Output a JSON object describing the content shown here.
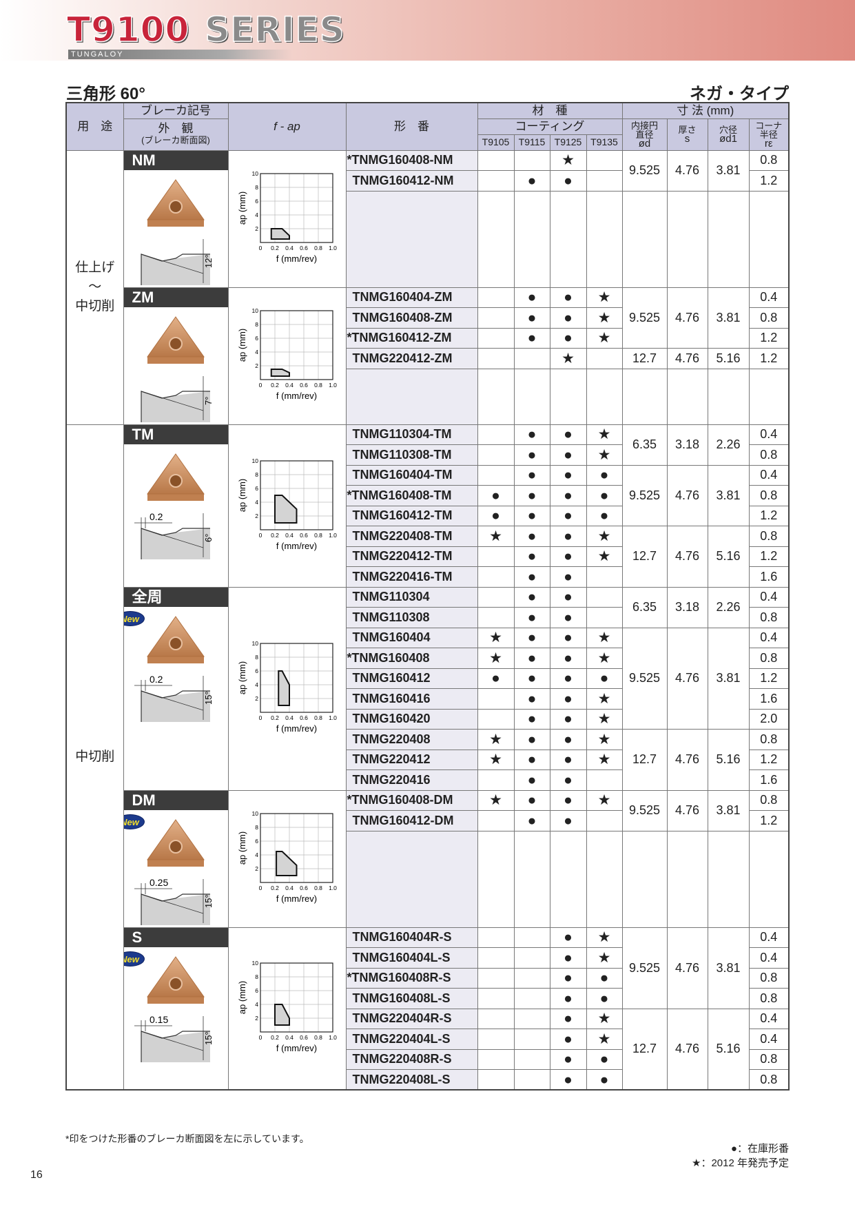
{
  "header": {
    "logo_series": "T9100",
    "logo_word": "SERIES",
    "brand": "TUNGALOY"
  },
  "title": "三角形 60°",
  "subtitle": "ネガ・タイプ",
  "table_header": {
    "usage": "用　途",
    "break_code": "ブレーカ記号",
    "appearance": "外　観",
    "appearance_sub": "(ブレーカ断面図)",
    "fap": "f - ap",
    "part_no": "形　番",
    "grade": "材　種",
    "coating": "コーティング",
    "grades": [
      "T9105",
      "T9115",
      "T9125",
      "T9135"
    ],
    "dims": "寸 法 (mm)",
    "dim_cols": [
      {
        "l1": "内接円",
        "l2": "直径",
        "l3": "ød"
      },
      {
        "l1": "厚さ",
        "l2": "",
        "l3": "s"
      },
      {
        "l1": "穴径",
        "l2": "",
        "l3": "ød1"
      },
      {
        "l1": "コーナ",
        "l2": "半径",
        "l3": "rε"
      }
    ]
  },
  "chart_axes": {
    "xlabel": "f (mm/rev)",
    "ylabel": "ap (mm)",
    "x_ticks": [
      "0",
      "0.2",
      "0.4",
      "0.6",
      "0.8",
      "1.0"
    ],
    "y_ticks": [
      "2",
      "4",
      "6",
      "8",
      "10"
    ],
    "xlim": [
      0,
      1.0
    ],
    "ylim": [
      0,
      10
    ]
  },
  "usage_groups": [
    {
      "label": "仕上げ\n〜\n中切削",
      "sections": 2
    },
    {
      "label": "中切削",
      "sections": 4
    }
  ],
  "sections": [
    {
      "code": "NM",
      "is_new": false,
      "land": "",
      "angle": "12°",
      "blank_rows": 4,
      "chart_region": [
        [
          0.15,
          0.5
        ],
        [
          0.15,
          2
        ],
        [
          0.3,
          2
        ],
        [
          0.4,
          1
        ],
        [
          0.4,
          0.5
        ]
      ],
      "rows": [
        {
          "part": "*TNMG160408-NM",
          "marks": [
            "",
            "",
            "★",
            ""
          ],
          "re": "0.8"
        },
        {
          "part": "TNMG160412-NM",
          "marks": [
            "",
            "●",
            "●",
            ""
          ],
          "re": "1.2"
        }
      ],
      "dim_groups": [
        {
          "rows": 2,
          "od": "9.525",
          "s": "4.76",
          "od1": "3.81"
        }
      ]
    },
    {
      "code": "ZM",
      "is_new": false,
      "land": "",
      "angle": "7°",
      "blank_rows": 2,
      "chart_region": [
        [
          0.15,
          0.5
        ],
        [
          0.15,
          1.5
        ],
        [
          0.3,
          1.5
        ],
        [
          0.4,
          1
        ],
        [
          0.4,
          0.5
        ]
      ],
      "rows": [
        {
          "part": "TNMG160404-ZM",
          "marks": [
            "",
            "●",
            "●",
            "★"
          ],
          "re": "0.4"
        },
        {
          "part": "TNMG160408-ZM",
          "marks": [
            "",
            "●",
            "●",
            "★"
          ],
          "re": "0.8"
        },
        {
          "part": "*TNMG160412-ZM",
          "marks": [
            "",
            "●",
            "●",
            "★"
          ],
          "re": "1.2"
        },
        {
          "part": "TNMG220412-ZM",
          "marks": [
            "",
            "",
            "★",
            ""
          ],
          "re": "1.2"
        }
      ],
      "dim_groups": [
        {
          "rows": 3,
          "od": "9.525",
          "s": "4.76",
          "od1": "3.81"
        },
        {
          "rows": 1,
          "od": "12.7",
          "s": "4.76",
          "od1": "5.16"
        }
      ]
    },
    {
      "code": "TM",
      "is_new": false,
      "land": "0.2",
      "angle": "6°",
      "blank_rows": 0,
      "chart_region": [
        [
          0.2,
          1
        ],
        [
          0.2,
          5
        ],
        [
          0.3,
          5
        ],
        [
          0.5,
          3
        ],
        [
          0.5,
          1
        ]
      ],
      "rows": [
        {
          "part": "TNMG110304-TM",
          "marks": [
            "",
            "●",
            "●",
            "★"
          ],
          "re": "0.4"
        },
        {
          "part": "TNMG110308-TM",
          "marks": [
            "",
            "●",
            "●",
            "★"
          ],
          "re": "0.8"
        },
        {
          "part": "TNMG160404-TM",
          "marks": [
            "",
            "●",
            "●",
            "●"
          ],
          "re": "0.4"
        },
        {
          "part": "*TNMG160408-TM",
          "marks": [
            "●",
            "●",
            "●",
            "●"
          ],
          "re": "0.8"
        },
        {
          "part": "TNMG160412-TM",
          "marks": [
            "●",
            "●",
            "●",
            "●"
          ],
          "re": "1.2"
        },
        {
          "part": "TNMG220408-TM",
          "marks": [
            "★",
            "●",
            "●",
            "★"
          ],
          "re": "0.8"
        },
        {
          "part": "TNMG220412-TM",
          "marks": [
            "",
            "●",
            "●",
            "★"
          ],
          "re": "1.2"
        },
        {
          "part": "TNMG220416-TM",
          "marks": [
            "",
            "●",
            "●",
            ""
          ],
          "re": "1.6"
        }
      ],
      "dim_groups": [
        {
          "rows": 2,
          "od": "6.35",
          "s": "3.18",
          "od1": "2.26"
        },
        {
          "rows": 3,
          "od": "9.525",
          "s": "4.76",
          "od1": "3.81"
        },
        {
          "rows": 3,
          "od": "12.7",
          "s": "4.76",
          "od1": "5.16"
        }
      ]
    },
    {
      "code": "全周",
      "is_new": true,
      "new_label": "New",
      "land": "0.2",
      "angle": "15°",
      "blank_rows": 0,
      "chart_region": [
        [
          0.25,
          1
        ],
        [
          0.25,
          6
        ],
        [
          0.3,
          6
        ],
        [
          0.4,
          4
        ],
        [
          0.4,
          1
        ]
      ],
      "rows": [
        {
          "part": "TNMG110304",
          "marks": [
            "",
            "●",
            "●",
            ""
          ],
          "re": "0.4"
        },
        {
          "part": "TNMG110308",
          "marks": [
            "",
            "●",
            "●",
            ""
          ],
          "re": "0.8"
        },
        {
          "part": "TNMG160404",
          "marks": [
            "★",
            "●",
            "●",
            "★"
          ],
          "re": "0.4"
        },
        {
          "part": "*TNMG160408",
          "marks": [
            "★",
            "●",
            "●",
            "★"
          ],
          "re": "0.8"
        },
        {
          "part": "TNMG160412",
          "marks": [
            "●",
            "●",
            "●",
            "●"
          ],
          "re": "1.2"
        },
        {
          "part": "TNMG160416",
          "marks": [
            "",
            "●",
            "●",
            "★"
          ],
          "re": "1.6"
        },
        {
          "part": "TNMG160420",
          "marks": [
            "",
            "●",
            "●",
            "★"
          ],
          "re": "2.0"
        },
        {
          "part": "TNMG220408",
          "marks": [
            "★",
            "●",
            "●",
            "★"
          ],
          "re": "0.8"
        },
        {
          "part": "TNMG220412",
          "marks": [
            "★",
            "●",
            "●",
            "★"
          ],
          "re": "1.2"
        },
        {
          "part": "TNMG220416",
          "marks": [
            "",
            "●",
            "●",
            ""
          ],
          "re": "1.6"
        }
      ],
      "dim_groups": [
        {
          "rows": 2,
          "od": "6.35",
          "s": "3.18",
          "od1": "2.26"
        },
        {
          "rows": 5,
          "od": "9.525",
          "s": "4.76",
          "od1": "3.81"
        },
        {
          "rows": 3,
          "od": "12.7",
          "s": "4.76",
          "od1": "5.16"
        }
      ]
    },
    {
      "code": "DM",
      "is_new": true,
      "new_label": "New",
      "land": "0.25",
      "angle": "15°",
      "blank_rows": 4,
      "chart_region": [
        [
          0.22,
          1
        ],
        [
          0.22,
          4.5
        ],
        [
          0.3,
          4.5
        ],
        [
          0.5,
          2.5
        ],
        [
          0.5,
          1
        ]
      ],
      "rows": [
        {
          "part": "*TNMG160408-DM",
          "marks": [
            "★",
            "●",
            "●",
            "★"
          ],
          "re": "0.8"
        },
        {
          "part": "TNMG160412-DM",
          "marks": [
            "",
            "●",
            "●",
            ""
          ],
          "re": "1.2"
        }
      ],
      "dim_groups": [
        {
          "rows": 2,
          "od": "9.525",
          "s": "4.76",
          "od1": "3.81"
        }
      ]
    },
    {
      "code": "S",
      "is_new": true,
      "new_label": "New",
      "land": "0.15",
      "angle": "15°",
      "blank_rows": 0,
      "chart_region": [
        [
          0.2,
          1
        ],
        [
          0.2,
          4
        ],
        [
          0.3,
          4
        ],
        [
          0.4,
          2
        ],
        [
          0.4,
          1
        ]
      ],
      "rows": [
        {
          "part": "TNMG160404R-S",
          "marks": [
            "",
            "",
            "●",
            "★"
          ],
          "re": "0.4"
        },
        {
          "part": "TNMG160404L-S",
          "marks": [
            "",
            "",
            "●",
            "★"
          ],
          "re": "0.4"
        },
        {
          "part": "*TNMG160408R-S",
          "marks": [
            "",
            "",
            "●",
            "●"
          ],
          "re": "0.8"
        },
        {
          "part": "TNMG160408L-S",
          "marks": [
            "",
            "",
            "●",
            "●"
          ],
          "re": "0.8"
        },
        {
          "part": "TNMG220404R-S",
          "marks": [
            "",
            "",
            "●",
            "★"
          ],
          "re": "0.4"
        },
        {
          "part": "TNMG220404L-S",
          "marks": [
            "",
            "",
            "●",
            "★"
          ],
          "re": "0.4"
        },
        {
          "part": "TNMG220408R-S",
          "marks": [
            "",
            "",
            "●",
            "●"
          ],
          "re": "0.8"
        },
        {
          "part": "TNMG220408L-S",
          "marks": [
            "",
            "",
            "●",
            "●"
          ],
          "re": "0.8"
        }
      ],
      "dim_groups": [
        {
          "rows": 4,
          "od": "9.525",
          "s": "4.76",
          "od1": "3.81"
        },
        {
          "rows": 4,
          "od": "12.7",
          "s": "4.76",
          "od1": "5.16"
        }
      ]
    }
  ],
  "footnote": "*印をつけた形番のブレーカ断面図を左に示しています。",
  "legend": [
    {
      "symbol": "●",
      "text": "：在庫形番"
    },
    {
      "symbol": "★",
      "text": "：2012 年発売予定"
    }
  ],
  "page_number": "16",
  "colors": {
    "header_bg": "#c9c9e0",
    "part_bg": "#ecebf3",
    "break_head": "#3c3c3c",
    "logo_red": "#c8243a",
    "insert_copper": "#c98a5a"
  }
}
